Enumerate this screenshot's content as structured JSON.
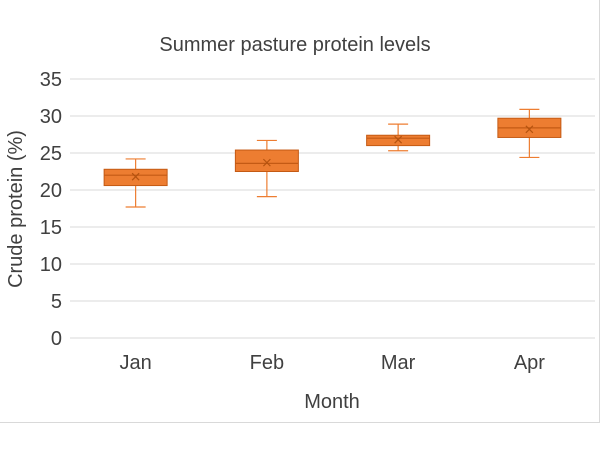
{
  "chart_data": {
    "type": "box",
    "title": "Summer pasture protein levels",
    "xlabel": "Month",
    "ylabel": "Crude protein (%)",
    "ylim": [
      0,
      35
    ],
    "yticks": [
      0,
      5,
      10,
      15,
      20,
      25,
      30,
      35
    ],
    "grid": true,
    "categories": [
      "Jan",
      "Feb",
      "Mar",
      "Apr"
    ],
    "series": [
      {
        "color": "#ed7d31",
        "boxes": [
          {
            "min": 17.7,
            "q1": 20.6,
            "median": 22.0,
            "q3": 22.8,
            "max": 24.2,
            "mean": 21.8
          },
          {
            "min": 19.1,
            "q1": 22.5,
            "median": 23.6,
            "q3": 25.4,
            "max": 26.7,
            "mean": 23.7
          },
          {
            "min": 25.3,
            "q1": 26.0,
            "median": 27.0,
            "q3": 27.4,
            "max": 28.9,
            "mean": 26.8
          },
          {
            "min": 24.4,
            "q1": 27.1,
            "median": 28.4,
            "q3": 29.7,
            "max": 30.9,
            "mean": 28.2
          }
        ]
      }
    ]
  }
}
